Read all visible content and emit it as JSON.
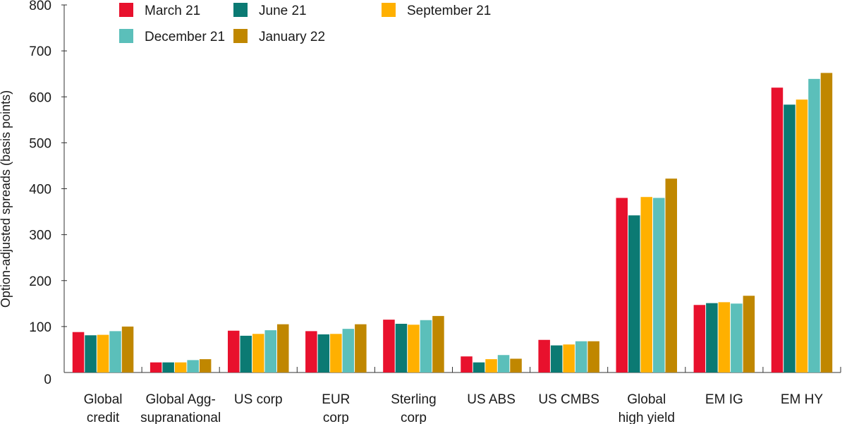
{
  "chart_data": {
    "type": "bar",
    "title": "",
    "xlabel": "",
    "ylabel": "Option-adjusted spreads (basis points)",
    "ylim": [
      0,
      800
    ],
    "yticks": [
      0,
      100,
      200,
      300,
      400,
      500,
      600,
      700,
      800
    ],
    "grid": false,
    "legend_position": "top",
    "categories": [
      [
        "Global",
        "credit"
      ],
      [
        "Global Agg-",
        "supranational"
      ],
      [
        "US corp"
      ],
      [
        "EUR",
        "corp"
      ],
      [
        "Sterling",
        "corp"
      ],
      [
        "US ABS"
      ],
      [
        "US CMBS"
      ],
      [
        "Global",
        "high yield"
      ],
      [
        "EM IG"
      ],
      [
        "EM HY"
      ]
    ],
    "series": [
      {
        "name": "March 21",
        "color": "#e8112d",
        "values": [
          88,
          22,
          91,
          90,
          115,
          35,
          71,
          380,
          147,
          620
        ]
      },
      {
        "name": "June 21",
        "color": "#0b7a73",
        "values": [
          81,
          22,
          80,
          83,
          106,
          22,
          59,
          342,
          151,
          583
        ]
      },
      {
        "name": "September 21",
        "color": "#ffb000",
        "values": [
          82,
          22,
          84,
          84,
          104,
          29,
          61,
          382,
          153,
          594
        ]
      },
      {
        "name": "December 21",
        "color": "#5bbfba",
        "values": [
          90,
          27,
          92,
          95,
          114,
          38,
          68,
          380,
          150,
          639
        ]
      },
      {
        "name": "January 22",
        "color": "#c08700",
        "values": [
          100,
          29,
          105,
          105,
          123,
          30,
          68,
          422,
          167,
          652
        ]
      }
    ]
  }
}
